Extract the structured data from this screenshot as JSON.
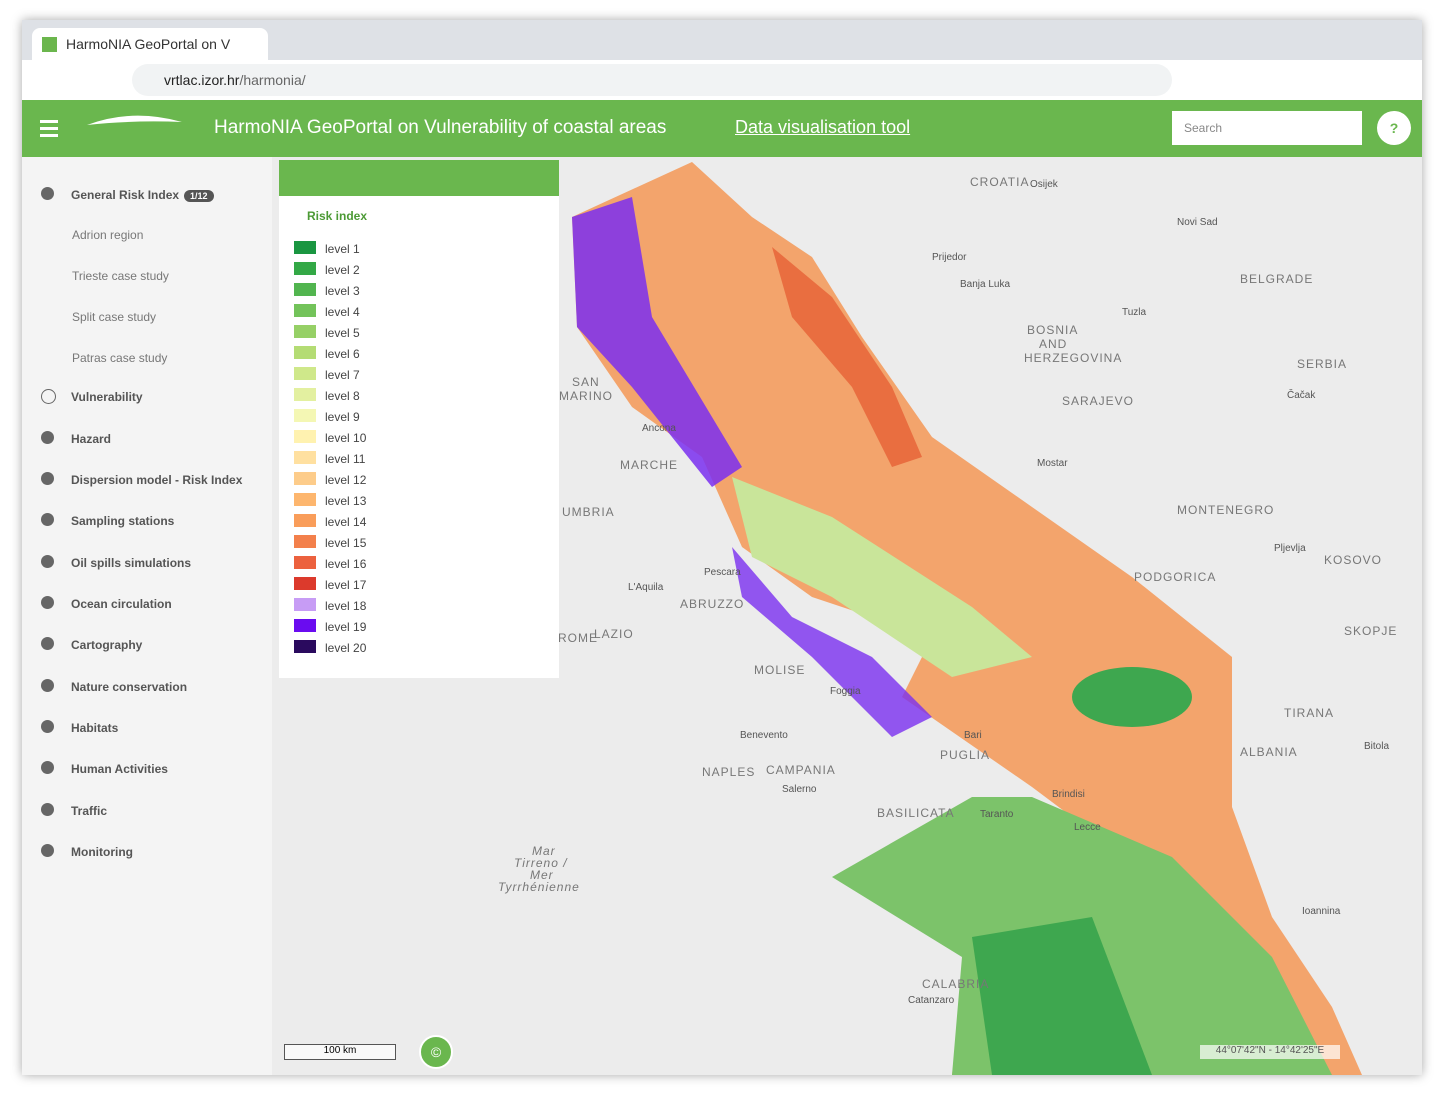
{
  "browser": {
    "tab_title": "HarmoNIA GeoPortal on V",
    "url_host": "vrtlac.izor.hr",
    "url_path": "/harmonia/"
  },
  "header": {
    "title": "HarmoNIA GeoPortal on Vulnerability of coastal areas",
    "link": "Data visualisation tool",
    "search_placeholder": "Search",
    "help": "?"
  },
  "sidebar": {
    "items": [
      {
        "label": "General Risk Index",
        "badge": "1/12"
      },
      {
        "label": "Adrion region"
      },
      {
        "label": "Trieste case study"
      },
      {
        "label": "Split case study"
      },
      {
        "label": "Patras case study"
      },
      {
        "label": "Vulnerability"
      },
      {
        "label": "Hazard"
      },
      {
        "label": "Dispersion model - Risk Index"
      },
      {
        "label": "Sampling stations"
      },
      {
        "label": "Oil spills simulations"
      },
      {
        "label": "Ocean circulation"
      },
      {
        "label": "Cartography"
      },
      {
        "label": "Nature conservation"
      },
      {
        "label": "Habitats"
      },
      {
        "label": "Human Activities"
      },
      {
        "label": "Traffic"
      },
      {
        "label": "Monitoring"
      }
    ]
  },
  "legend": {
    "title": "Risk index",
    "levels": [
      {
        "label": "level 1",
        "color": "#1a9641"
      },
      {
        "label": "level 2",
        "color": "#33a846"
      },
      {
        "label": "level 3",
        "color": "#52b54f"
      },
      {
        "label": "level 4",
        "color": "#73c35a"
      },
      {
        "label": "level 5",
        "color": "#96d066"
      },
      {
        "label": "level 6",
        "color": "#b4dc74"
      },
      {
        "label": "level 7",
        "color": "#cfe88a"
      },
      {
        "label": "level 8",
        "color": "#e3f0a0"
      },
      {
        "label": "level 9",
        "color": "#f4f7b4"
      },
      {
        "label": "level 10",
        "color": "#fff2b0"
      },
      {
        "label": "level 11",
        "color": "#ffe0a0"
      },
      {
        "label": "level 12",
        "color": "#fdcc8a"
      },
      {
        "label": "level 13",
        "color": "#fdb66e"
      },
      {
        "label": "level 14",
        "color": "#f99d5a"
      },
      {
        "label": "level 15",
        "color": "#f3804b"
      },
      {
        "label": "level 16",
        "color": "#ec613e"
      },
      {
        "label": "level 17",
        "color": "#dc3a2c"
      },
      {
        "label": "level 18",
        "color": "#c79cf5"
      },
      {
        "label": "level 19",
        "color": "#6a0cf0"
      },
      {
        "label": "level 20",
        "color": "#2a0a5e"
      }
    ]
  },
  "map": {
    "labels": [
      "CROATIA",
      "Osijek",
      "Novi Sad",
      "Prijedor",
      "Banja Luka",
      "BELGRADE",
      "BOSNIA",
      "AND",
      "HERZEGOVINA",
      "Tuzla",
      "SERBIA",
      "SAN",
      "MARINO",
      "Čačak",
      "SARAJEVO",
      "Ancona",
      "MARCHE",
      "Mostar",
      "UMBRIA",
      "MONTENEGRO",
      "Pljevlja",
      "Pescara",
      "PODGORICA",
      "KOSOVO",
      "L'Aquila",
      "ABRUZZO",
      "LAZIO",
      "SKOPJE",
      "MOLISE",
      "Foggia",
      "Benevento",
      "NAPLES",
      "CAMPANIA",
      "Salerno",
      "PUGLIA",
      "Bari",
      "ALBANIA",
      "TIRANA",
      "Bitola",
      "BASILICATA",
      "Brindisi",
      "Lecce",
      "Mar",
      "Tirreno /",
      "Mer",
      "Tyrrhénienne",
      "Ioannina",
      "CALABRIA",
      "Catanzaro",
      "Taranto",
      "ROME"
    ],
    "scale": "100 km",
    "copyright": "©",
    "coords": "44°07'42\"N - 14°42'25\"E"
  }
}
